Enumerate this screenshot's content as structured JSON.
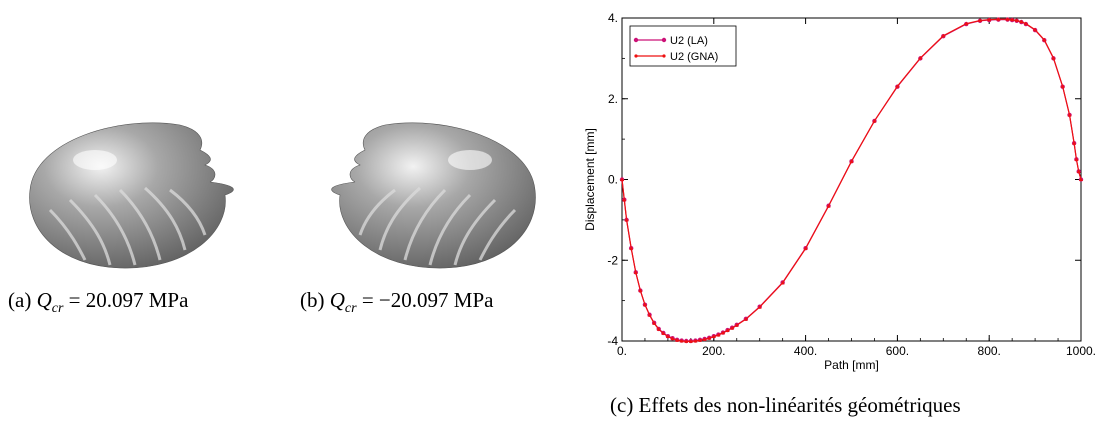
{
  "captions": {
    "a_prefix": "(a) ",
    "a_var": "Q",
    "a_sub": "cr",
    "a_value": " = 20.097 MPa",
    "b_prefix": "(b) ",
    "b_var": "Q",
    "b_sub": "cr",
    "b_value": " = −20.097 MPa",
    "c": "(c) Effets des non-linéarités géométriques"
  },
  "colors": {
    "series_la": "#cc1177",
    "series_gna": "#ee1111",
    "shell": "#8c8c8c"
  },
  "chart_data": {
    "type": "line",
    "xlabel": "Path [mm]",
    "ylabel": "Displacement [mm]",
    "xlim": [
      0,
      1000
    ],
    "ylim": [
      -4,
      4
    ],
    "xticks": [
      0,
      200,
      400,
      600,
      800,
      1000
    ],
    "xtick_labels": [
      "0.",
      "200.",
      "400.",
      "600.",
      "800.",
      "1000."
    ],
    "yticks": [
      -4,
      -2,
      0,
      2,
      4
    ],
    "ytick_labels": [
      "-4",
      "-2",
      "0.",
      "2.",
      "4."
    ],
    "legend_position": "top-left",
    "series": [
      {
        "name": "U2 (LA)",
        "x": [
          0,
          5,
          10,
          20,
          30,
          40,
          50,
          60,
          70,
          80,
          90,
          100,
          110,
          120,
          130,
          140,
          150,
          160,
          170,
          180,
          190,
          200,
          210,
          220,
          230,
          240,
          250,
          270,
          300,
          350,
          400,
          450,
          500,
          550,
          600,
          650,
          700,
          750,
          780,
          800,
          820,
          840,
          850,
          860,
          870,
          880,
          900,
          920,
          940,
          960,
          975,
          985,
          990,
          995,
          1000
        ],
        "y": [
          0,
          -0.5,
          -1.0,
          -1.7,
          -2.3,
          -2.75,
          -3.1,
          -3.35,
          -3.55,
          -3.7,
          -3.8,
          -3.88,
          -3.93,
          -3.97,
          -3.99,
          -4.0,
          -4.0,
          -3.99,
          -3.97,
          -3.95,
          -3.92,
          -3.88,
          -3.84,
          -3.79,
          -3.73,
          -3.67,
          -3.6,
          -3.45,
          -3.15,
          -2.55,
          -1.7,
          -0.65,
          0.45,
          1.45,
          2.3,
          3.0,
          3.55,
          3.85,
          3.93,
          3.95,
          3.96,
          3.96,
          3.95,
          3.93,
          3.9,
          3.85,
          3.7,
          3.45,
          3.0,
          2.3,
          1.6,
          0.9,
          0.5,
          0.2,
          0
        ]
      },
      {
        "name": "U2 (GNA)",
        "x": [
          0,
          5,
          10,
          20,
          30,
          40,
          50,
          60,
          70,
          80,
          90,
          100,
          110,
          120,
          130,
          140,
          150,
          160,
          170,
          180,
          190,
          200,
          210,
          220,
          230,
          240,
          250,
          270,
          300,
          350,
          400,
          450,
          500,
          550,
          600,
          650,
          700,
          750,
          780,
          800,
          820,
          840,
          850,
          860,
          870,
          880,
          900,
          920,
          940,
          960,
          975,
          985,
          990,
          995,
          1000
        ],
        "y": [
          0,
          -0.5,
          -1.0,
          -1.7,
          -2.3,
          -2.75,
          -3.1,
          -3.36,
          -3.56,
          -3.71,
          -3.81,
          -3.89,
          -3.94,
          -3.98,
          -4.0,
          -4.01,
          -4.01,
          -4.0,
          -3.98,
          -3.96,
          -3.93,
          -3.89,
          -3.85,
          -3.8,
          -3.74,
          -3.68,
          -3.61,
          -3.46,
          -3.16,
          -2.56,
          -1.71,
          -0.66,
          0.45,
          1.45,
          2.31,
          3.01,
          3.56,
          3.86,
          3.94,
          3.96,
          3.97,
          3.97,
          3.96,
          3.94,
          3.91,
          3.86,
          3.71,
          3.46,
          3.01,
          2.31,
          1.6,
          0.9,
          0.5,
          0.2,
          0
        ]
      }
    ]
  }
}
